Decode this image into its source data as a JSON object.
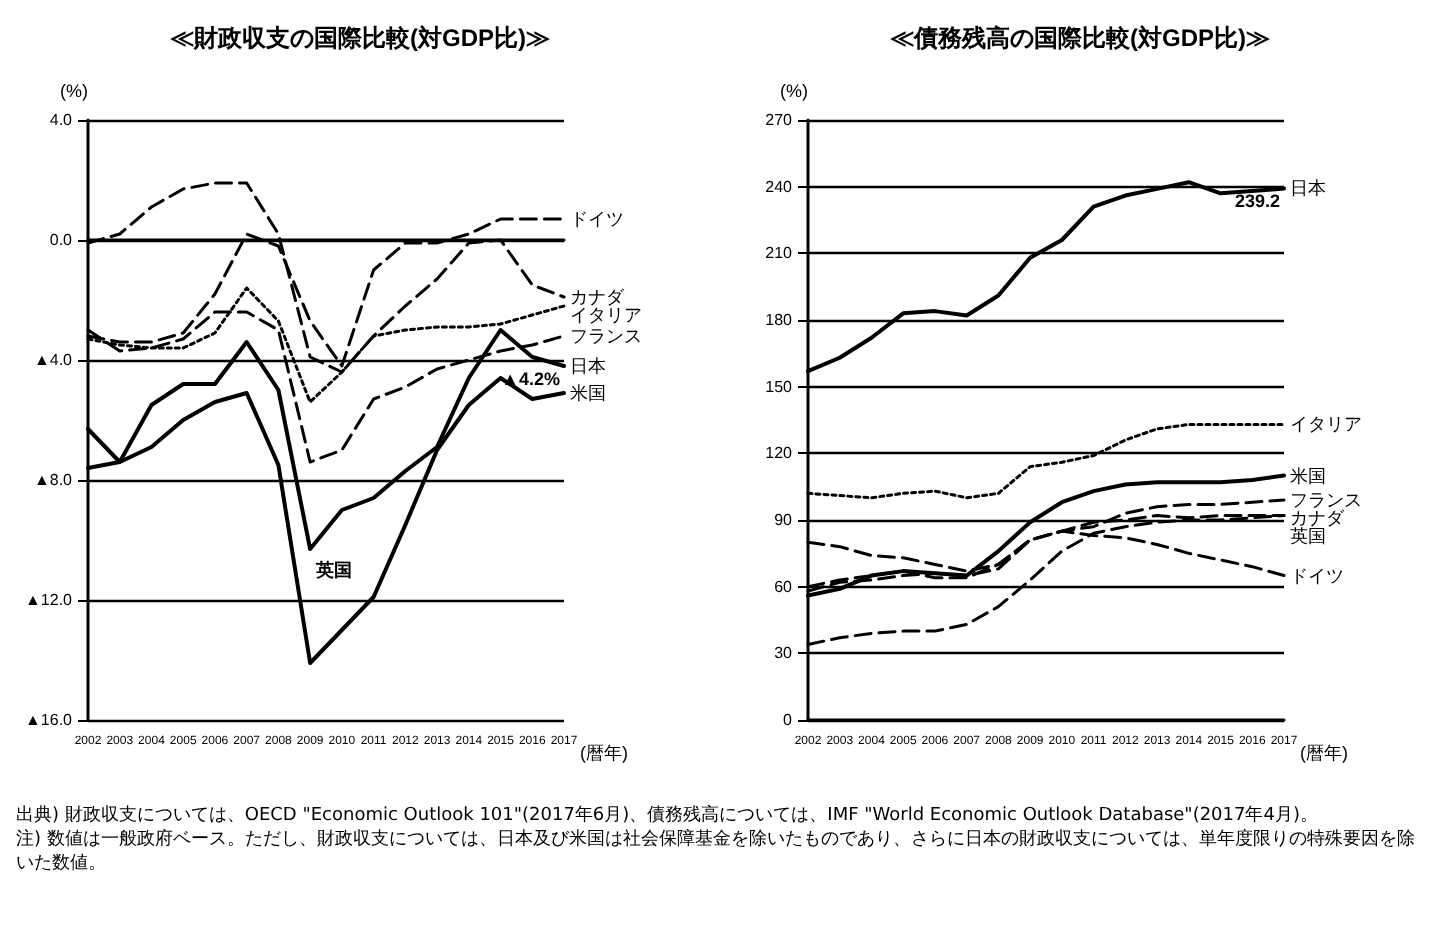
{
  "chart_data": [
    {
      "type": "line",
      "title": "≪財政収支の国際比較(対GDP比)≫",
      "ylabel": "(%)",
      "xlabel": "(暦年)",
      "legend": false,
      "grid": "y",
      "marker": "none",
      "categories": [
        "2002",
        "2003",
        "2004",
        "2005",
        "2006",
        "2007",
        "2008",
        "2009",
        "2010",
        "2011",
        "2012",
        "2013",
        "2014",
        "2015",
        "2016",
        "2017"
      ],
      "ylim": [
        -16,
        4
      ],
      "yticks": [
        {
          "value": -16,
          "label": "▲16.0"
        },
        {
          "value": -12,
          "label": "▲12.0"
        },
        {
          "value": -8,
          "label": "▲8.0"
        },
        {
          "value": -4,
          "label": "▲4.0"
        },
        {
          "value": 0,
          "label": "0.0"
        },
        {
          "value": 4,
          "label": "4.0"
        }
      ],
      "series": [
        {
          "name": "ドイツ",
          "color": "#000000",
          "line_style": "dashed",
          "values": [
            -3.2,
            -3.4,
            -3.4,
            -3.1,
            -1.8,
            0.2,
            -0.2,
            -2.7,
            -4.2,
            -1.0,
            -0.1,
            -0.1,
            0.2,
            0.7,
            0.7,
            0.7
          ]
        },
        {
          "name": "カナダ",
          "color": "#000000",
          "line_style": "dashed",
          "values": [
            -0.1,
            0.2,
            1.1,
            1.7,
            1.9,
            1.9,
            0.2,
            -3.9,
            -4.4,
            -3.2,
            -2.2,
            -1.3,
            -0.1,
            0.0,
            -1.5,
            -1.9
          ]
        },
        {
          "name": "イタリア",
          "color": "#000000",
          "line_style": "dotted",
          "values": [
            -3.3,
            -3.5,
            -3.6,
            -3.6,
            -3.1,
            -1.6,
            -2.7,
            -5.4,
            -4.4,
            -3.2,
            -3.0,
            -2.9,
            -2.9,
            -2.8,
            -2.5,
            -2.2
          ]
        },
        {
          "name": "フランス",
          "color": "#000000",
          "line_style": "dashed",
          "values": [
            -3.0,
            -3.7,
            -3.6,
            -3.3,
            -2.4,
            -2.4,
            -3.0,
            -7.4,
            -7.0,
            -5.3,
            -4.9,
            -4.3,
            -4.0,
            -3.7,
            -3.5,
            -3.2
          ]
        },
        {
          "name": "日本",
          "color": "#000000",
          "line_style": "solid",
          "values": [
            -6.3,
            -7.4,
            -5.5,
            -4.8,
            -4.8,
            -3.4,
            -5.0,
            -10.3,
            -9.0,
            -8.6,
            -7.7,
            -6.9,
            -4.6,
            -3.0,
            -3.9,
            -4.2
          ]
        },
        {
          "name": "米国",
          "color": "#000000",
          "line_style": "solid",
          "values": [
            -7.6,
            -7.4,
            -6.9,
            -6.0,
            -5.4,
            -5.1,
            -7.5,
            -14.1,
            -13.0,
            -11.9,
            -9.5,
            -7.0,
            -5.5,
            -4.6,
            -5.3,
            -5.1
          ]
        }
      ],
      "annotations": [
        {
          "text": "▲4.2%",
          "x": "2017",
          "y": -4.2
        },
        {
          "text": "英国",
          "x": "2009",
          "y": -10.3
        },
        "出典) 財政収支については、OECD \"Economic Outlook 101\"(2017年6月)、債務残高については、IMF \"World Economic Outlook Database\"(2017年4月)。",
        "注) 数値は一般政府ベース。ただし、財政収支については、日本及び米国は社会保障基金を除いたものであり、さらに日本の財政収支については、単年度限りの特殊要因を除いた数値。"
      ]
    },
    {
      "type": "line",
      "title": "≪債務残高の国際比較(対GDP比)≫",
      "ylabel": "(%)",
      "xlabel": "(暦年)",
      "legend": false,
      "grid": "y",
      "marker": "none",
      "categories": [
        "2002",
        "2003",
        "2004",
        "2005",
        "2006",
        "2007",
        "2008",
        "2009",
        "2010",
        "2011",
        "2012",
        "2013",
        "2014",
        "2015",
        "2016",
        "2017"
      ],
      "ylim": [
        0,
        270
      ],
      "yticks": [
        0,
        30,
        60,
        90,
        120,
        150,
        180,
        210,
        240,
        270
      ],
      "series": [
        {
          "name": "日本",
          "color": "#000000",
          "line_style": "solid",
          "values": [
            157,
            163,
            172,
            183,
            184,
            182,
            191,
            208,
            216,
            231,
            236,
            239,
            242,
            237,
            238,
            239.2
          ]
        },
        {
          "name": "イタリア",
          "color": "#000000",
          "line_style": "dotted",
          "values": [
            102,
            101,
            100,
            102,
            103,
            100,
            102,
            114,
            116,
            119,
            126,
            131,
            133,
            133,
            133,
            133
          ]
        },
        {
          "name": "米国",
          "color": "#000000",
          "line_style": "solid",
          "values": [
            56,
            59,
            65,
            67,
            66,
            65,
            76,
            89,
            98,
            103,
            106,
            107,
            107,
            107,
            108,
            110
          ]
        },
        {
          "name": "フランス",
          "color": "#000000",
          "line_style": "dashed",
          "values": [
            60,
            63,
            65,
            67,
            64,
            64,
            70,
            81,
            85,
            87,
            93,
            96,
            97,
            97,
            98,
            99
          ]
        },
        {
          "name": "カナダ",
          "color": "#000000",
          "line_style": "dashed",
          "values": [
            80,
            78,
            74,
            73,
            70,
            67,
            70,
            81,
            85,
            89,
            90,
            92,
            91,
            92,
            92,
            92
          ]
        },
        {
          "name": "英国",
          "color": "#000000",
          "line_style": "dashed",
          "values": [
            34,
            37,
            39,
            40,
            40,
            43,
            51,
            63,
            76,
            84,
            87,
            89,
            90,
            90,
            91,
            92
          ]
        },
        {
          "name": "ドイツ",
          "color": "#000000",
          "line_style": "dashed",
          "values": [
            58,
            62,
            63,
            65,
            66,
            65,
            68,
            81,
            85,
            83,
            82,
            79,
            75,
            72,
            69,
            65
          ]
        }
      ],
      "annotations": [
        {
          "text": "239.2",
          "x": "2017",
          "y": 239.2
        }
      ]
    }
  ]
}
